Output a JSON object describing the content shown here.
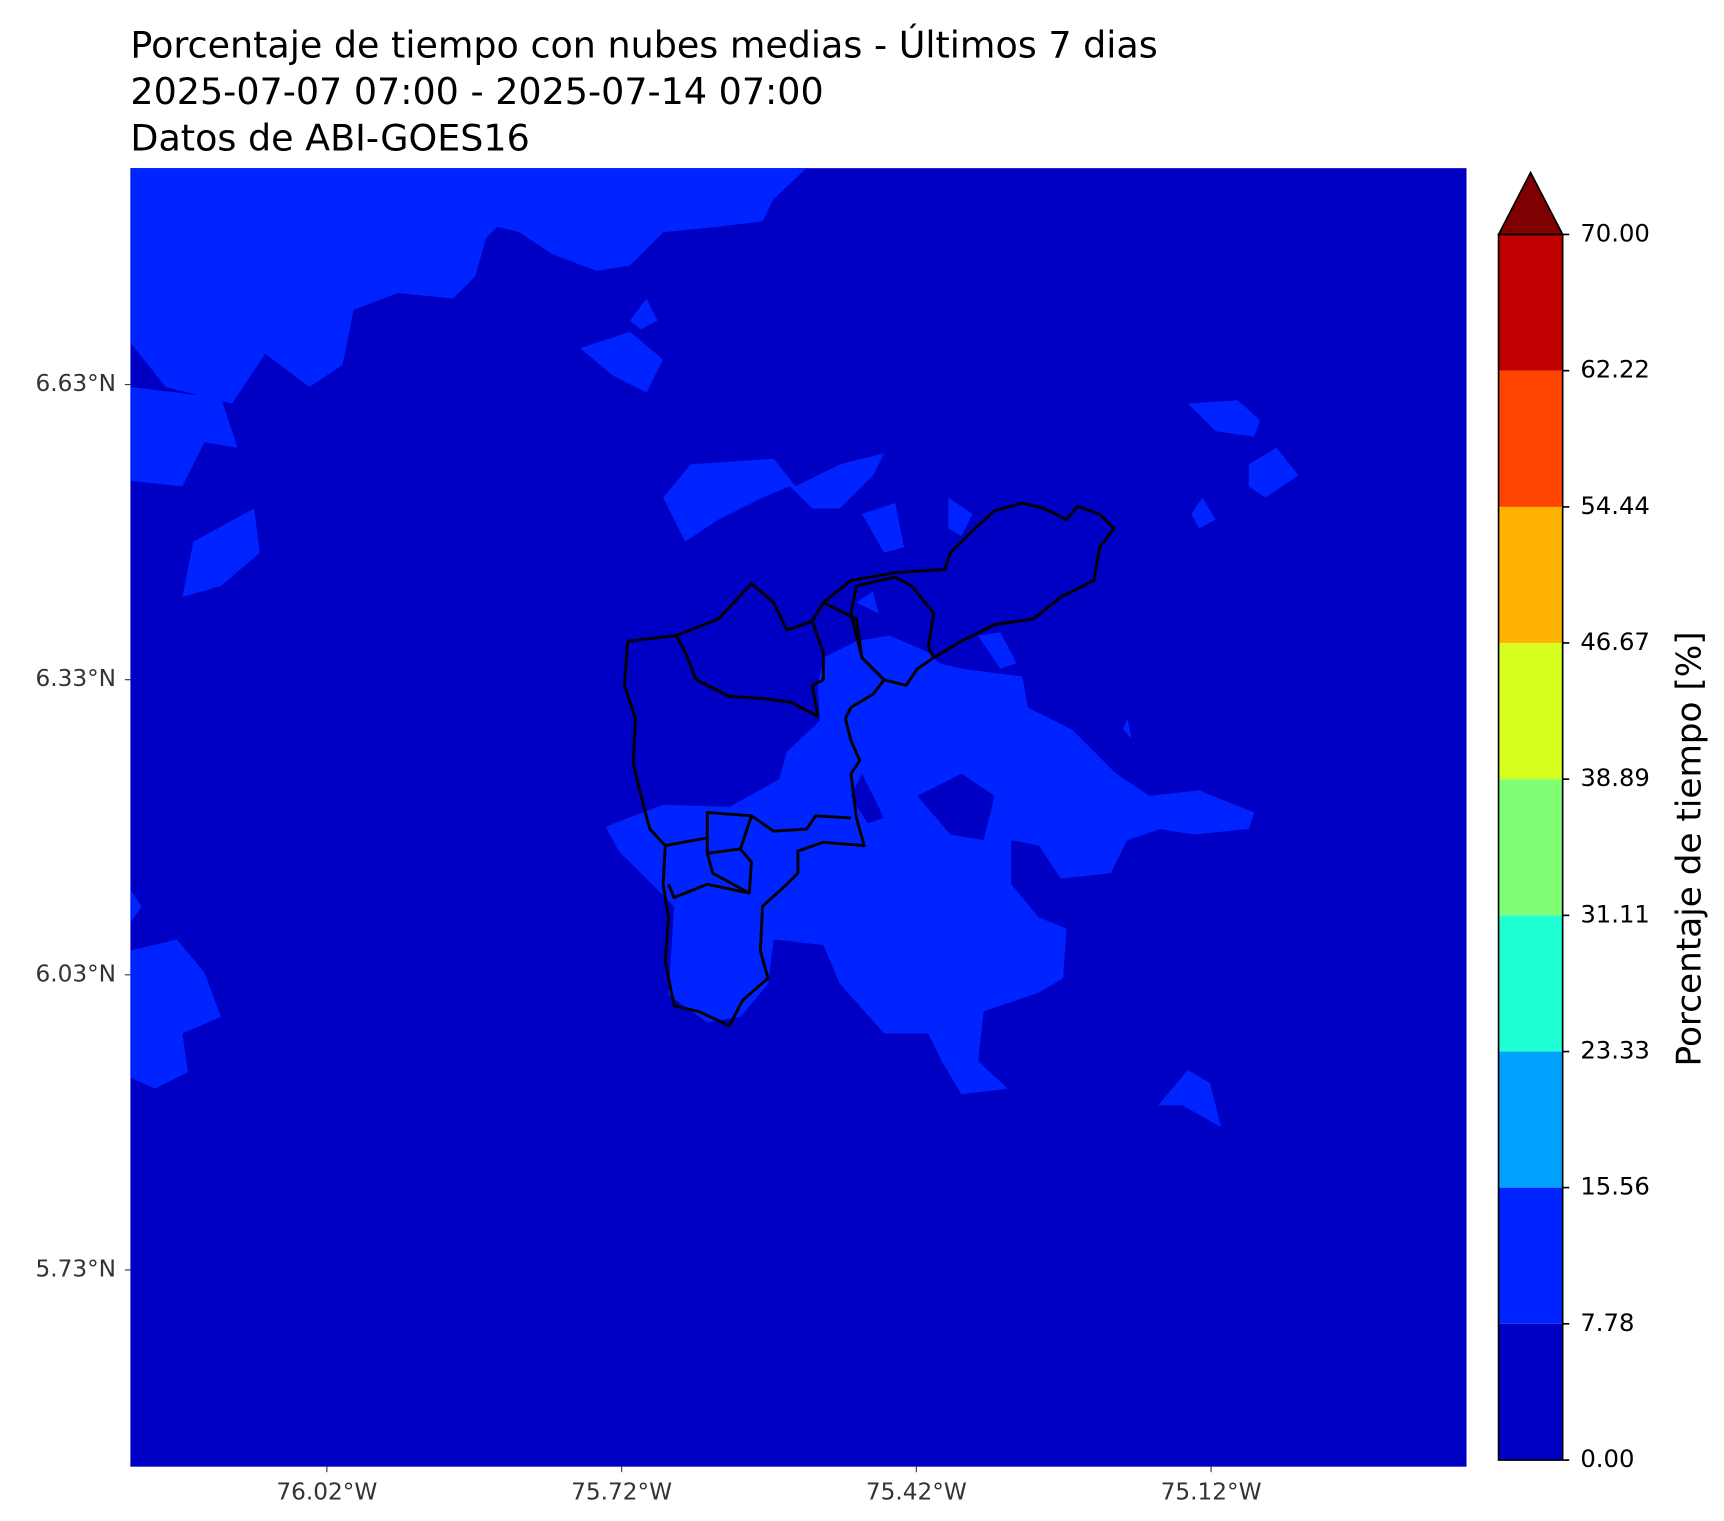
{
  "chart_data": {
    "type": "contour-map",
    "title": [
      "Porcentaje de tiempo con nubes medias - Últimos 7 dias",
      "2025-07-07 07:00 - 2025-07-14 07:00",
      "Datos de ABI-GOES16"
    ],
    "xlim": [
      -76.22,
      -74.86
    ],
    "ylim": [
      5.53,
      6.85
    ],
    "xticks": [
      {
        "value": -76.02,
        "label": "76.02°W"
      },
      {
        "value": -75.72,
        "label": "75.72°W"
      },
      {
        "value": -75.42,
        "label": "75.42°W"
      },
      {
        "value": -75.12,
        "label": "75.12°W"
      }
    ],
    "yticks": [
      {
        "value": 5.73,
        "label": "5.73°N"
      },
      {
        "value": 6.03,
        "label": "6.03°N"
      },
      {
        "value": 6.33,
        "label": "6.33°N"
      },
      {
        "value": 6.63,
        "label": "6.63°N"
      }
    ],
    "colorbar": {
      "label": "Porcentaje de tiempo [%]",
      "levels": [
        {
          "value": 0,
          "label": "0.00"
        },
        {
          "value": 7.78,
          "label": "7.78"
        },
        {
          "value": 15.56,
          "label": "15.56"
        },
        {
          "value": 23.33,
          "label": "23.33"
        },
        {
          "value": 31.11,
          "label": "31.11"
        },
        {
          "value": 38.89,
          "label": "38.89"
        },
        {
          "value": 46.67,
          "label": "46.67"
        },
        {
          "value": 54.44,
          "label": "54.44"
        },
        {
          "value": 62.22,
          "label": "62.22"
        },
        {
          "value": 70,
          "label": "70.00"
        }
      ],
      "colors": [
        "#0000c4",
        "#0024ff",
        "#00a0ff",
        "#1effd4",
        "#80ff74",
        "#d6ff20",
        "#ffb300",
        "#ff4500",
        "#c00000"
      ],
      "extend_color": "#7f0000"
    }
  }
}
